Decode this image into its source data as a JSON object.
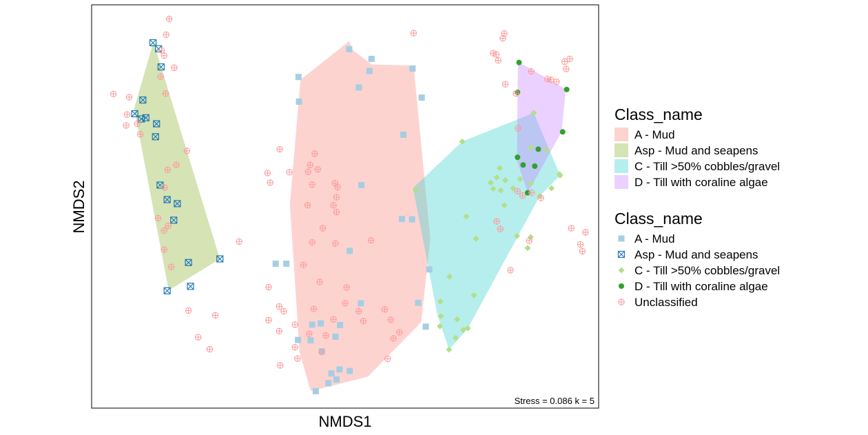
{
  "chart_data": {
    "type": "scatter",
    "xlabel": "NMDS1",
    "ylabel": "NMDS2",
    "xlim": [
      0,
      100
    ],
    "ylim": [
      0,
      100
    ],
    "annotation": "Stress = 0.086 k = 5",
    "grid": false,
    "legend_placement": "right",
    "legends": [
      {
        "title": "Class_name",
        "kind": "fill",
        "entries": [
          {
            "label": "A - Mud",
            "color": "#f8766d",
            "alpha": 0.32
          },
          {
            "label": "Asp - Mud and seapens",
            "color": "#a3c15a",
            "alpha": 0.45
          },
          {
            "label": "C - Till >50% cobbles/gravel",
            "color": "#3fd3d0",
            "alpha": 0.38
          },
          {
            "label": "D - Till with coraline algae",
            "color": "#c77cff",
            "alpha": 0.35
          }
        ]
      },
      {
        "title": "Class_name",
        "kind": "shape",
        "entries": [
          {
            "label": "A - Mud",
            "shape": "square",
            "color": "#a6cee3"
          },
          {
            "label": "Asp - Mud and seapens",
            "shape": "square-x",
            "color": "#1f78b4"
          },
          {
            "label": "C - Till >50% cobbles/gravel",
            "shape": "diamond",
            "color": "#b2df8a"
          },
          {
            "label": "D - Till with coraline algae",
            "shape": "circle",
            "color": "#33a02c"
          },
          {
            "label": "Unclassified",
            "shape": "circle-plus",
            "color": "#fb9a99"
          }
        ]
      }
    ],
    "hulls": [
      {
        "name": "A - Mud",
        "color": "#f8766d",
        "alpha": 0.32,
        "points": [
          [
            51.5,
            88.8
          ],
          [
            55.3,
            85.2
          ],
          [
            63.5,
            84.9
          ],
          [
            66.8,
            42.0
          ],
          [
            65.0,
            21.3
          ],
          [
            54.5,
            7.8
          ],
          [
            43.2,
            4.2
          ],
          [
            41.0,
            13.9
          ],
          [
            39.1,
            50.5
          ],
          [
            41.2,
            81.4
          ],
          [
            50.8,
            91.0
          ]
        ]
      },
      {
        "name": "Asp - Mud and seapens",
        "color": "#a3c15a",
        "alpha": 0.45,
        "points": [
          [
            12.2,
            90.8
          ],
          [
            25.3,
            37.0
          ],
          [
            15.2,
            29.2
          ],
          [
            8.4,
            74.3
          ]
        ]
      },
      {
        "name": "C - Till >50% cobbles/gravel",
        "color": "#3fd3d0",
        "alpha": 0.38,
        "points": [
          [
            87.2,
            73.2
          ],
          [
            92.4,
            57.7
          ],
          [
            88.4,
            52.6
          ],
          [
            74.2,
            19.8
          ],
          [
            70.5,
            14.5
          ],
          [
            68.2,
            23.1
          ],
          [
            63.4,
            54.6
          ],
          [
            73.1,
            66.1
          ]
        ]
      },
      {
        "name": "D - Till with coraline algae",
        "color": "#c77cff",
        "alpha": 0.35,
        "points": [
          [
            84.1,
            85.9
          ],
          [
            93.5,
            79.1
          ],
          [
            92.7,
            68.5
          ],
          [
            86.0,
            53.4
          ],
          [
            83.9,
            61.3
          ],
          [
            84.0,
            78.3
          ]
        ]
      }
    ],
    "series": [
      {
        "name": "A - Mud",
        "shape": "square",
        "color": "#a6cee3",
        "points": [
          [
            50.8,
            89.0
          ],
          [
            55.2,
            86.6
          ],
          [
            54.8,
            83.6
          ],
          [
            63.3,
            84.2
          ],
          [
            40.8,
            82.1
          ],
          [
            52.7,
            79.5
          ],
          [
            65.1,
            77.0
          ],
          [
            40.9,
            76.0
          ],
          [
            61.5,
            67.8
          ],
          [
            53.2,
            55.3
          ],
          [
            63.2,
            46.8
          ],
          [
            61.2,
            46.9
          ],
          [
            50.9,
            39.0
          ],
          [
            36.3,
            35.8
          ],
          [
            38.4,
            35.8
          ],
          [
            66.6,
            34.4
          ],
          [
            53.1,
            26.0
          ],
          [
            64.4,
            26.1
          ],
          [
            43.5,
            20.7
          ],
          [
            45.2,
            21.0
          ],
          [
            49.0,
            20.6
          ],
          [
            40.7,
            16.9
          ],
          [
            43.2,
            16.8
          ],
          [
            48.1,
            17.7
          ],
          [
            45.4,
            14.1
          ],
          [
            48.9,
            9.6
          ],
          [
            47.3,
            8.6
          ],
          [
            48.3,
            7.1
          ],
          [
            50.9,
            9.2
          ],
          [
            46.7,
            6.2
          ],
          [
            44.2,
            4.2
          ],
          [
            65.9,
            20.2
          ]
        ]
      },
      {
        "name": "Asp - Mud and seapens",
        "shape": "square-x",
        "color": "#1f78b4",
        "points": [
          [
            12.1,
            90.6
          ],
          [
            13.2,
            89.1
          ],
          [
            13.7,
            84.6
          ],
          [
            10.1,
            76.4
          ],
          [
            9.8,
            71.7
          ],
          [
            12.8,
            70.5
          ],
          [
            8.5,
            73.0
          ],
          [
            10.7,
            72.0
          ],
          [
            12.6,
            67.3
          ],
          [
            13.5,
            55.3
          ],
          [
            14.9,
            51.7
          ],
          [
            16.9,
            50.7
          ],
          [
            16.2,
            46.6
          ],
          [
            19.1,
            36.1
          ],
          [
            25.3,
            37.0
          ],
          [
            19.5,
            30.2
          ],
          [
            14.9,
            29.1
          ]
        ]
      },
      {
        "name": "C - Till >50% cobbles/gravel",
        "shape": "diamond",
        "color": "#b2df8a",
        "points": [
          [
            87.2,
            73.2
          ],
          [
            73.1,
            66.1
          ],
          [
            86.6,
            64.6
          ],
          [
            89.8,
            64.0
          ],
          [
            80.5,
            59.5
          ],
          [
            78.7,
            55.9
          ],
          [
            79.9,
            57.2
          ],
          [
            81.6,
            56.5
          ],
          [
            84.5,
            56.8
          ],
          [
            86.7,
            55.8
          ],
          [
            79.2,
            54.4
          ],
          [
            80.7,
            54.0
          ],
          [
            83.1,
            54.5
          ],
          [
            90.7,
            54.5
          ],
          [
            92.3,
            58.0
          ],
          [
            92.4,
            57.7
          ],
          [
            81.4,
            50.3
          ],
          [
            63.9,
            54.0
          ],
          [
            73.9,
            47.5
          ],
          [
            86.6,
            42.4
          ],
          [
            83.9,
            42.7
          ],
          [
            75.8,
            42.0
          ],
          [
            88.4,
            52.6
          ],
          [
            70.6,
            32.6
          ],
          [
            68.8,
            26.4
          ],
          [
            75.4,
            28.0
          ],
          [
            72.1,
            22.0
          ],
          [
            73.3,
            19.4
          ],
          [
            71.8,
            17.4
          ],
          [
            70.5,
            14.5
          ],
          [
            74.2,
            19.8
          ],
          [
            68.7,
            20.3
          ],
          [
            68.9,
            22.8
          ],
          [
            86.0,
            39.7
          ]
        ]
      },
      {
        "name": "D - Till with coraline algae",
        "shape": "circle",
        "color": "#33a02c",
        "points": [
          [
            84.3,
            85.7
          ],
          [
            93.7,
            79.0
          ],
          [
            84.0,
            78.3
          ],
          [
            92.9,
            68.5
          ],
          [
            88.1,
            64.2
          ],
          [
            85.1,
            60.3
          ],
          [
            84.0,
            62.2
          ],
          [
            87.4,
            60.0
          ],
          [
            86.0,
            53.4
          ]
        ]
      },
      {
        "name": "Unclassified",
        "shape": "circle-plus",
        "color": "#fb9a99",
        "points": [
          [
            15.3,
            96.5
          ],
          [
            14.7,
            92.6
          ],
          [
            13.8,
            88.7
          ],
          [
            14.3,
            87.4
          ],
          [
            16.3,
            84.4
          ],
          [
            13.6,
            82.2
          ],
          [
            14.6,
            78.0
          ],
          [
            4.3,
            77.9
          ],
          [
            7.4,
            77.1
          ],
          [
            7.0,
            72.8
          ],
          [
            6.8,
            70.1
          ],
          [
            9.0,
            70.5
          ],
          [
            9.6,
            67.9
          ],
          [
            18.8,
            63.8
          ],
          [
            16.7,
            60.3
          ],
          [
            15.0,
            59.1
          ],
          [
            14.4,
            54.7
          ],
          [
            13.1,
            47.1
          ],
          [
            15.1,
            45.2
          ],
          [
            14.3,
            44.0
          ],
          [
            14.3,
            39.3
          ],
          [
            15.7,
            35.0
          ],
          [
            19.1,
            24.2
          ],
          [
            21.0,
            17.6
          ],
          [
            23.3,
            14.6
          ],
          [
            34.9,
            30.0
          ],
          [
            37.0,
            25.2
          ],
          [
            37.9,
            24.0
          ],
          [
            40.1,
            20.7
          ],
          [
            37.0,
            19.1
          ],
          [
            34.9,
            21.8
          ],
          [
            42.9,
            18.4
          ],
          [
            43.8,
            24.6
          ],
          [
            46.2,
            18.0
          ],
          [
            47.7,
            22.0
          ],
          [
            50.0,
            26.0
          ],
          [
            52.7,
            24.0
          ],
          [
            53.6,
            21.6
          ],
          [
            57.8,
            24.5
          ],
          [
            59.0,
            21.9
          ],
          [
            59.5,
            17.3
          ],
          [
            58.4,
            12.2
          ],
          [
            60.7,
            18.8
          ],
          [
            50.3,
            29.9
          ],
          [
            45.0,
            31.3
          ],
          [
            41.8,
            35.5
          ],
          [
            43.5,
            41.1
          ],
          [
            45.6,
            44.6
          ],
          [
            48.3,
            48.6
          ],
          [
            47.7,
            50.3
          ],
          [
            42.6,
            50.3
          ],
          [
            43.5,
            55.4
          ],
          [
            48.3,
            52.3
          ],
          [
            48.5,
            54.8
          ],
          [
            39.0,
            58.5
          ],
          [
            34.7,
            58.3
          ],
          [
            42.7,
            58.6
          ],
          [
            43.1,
            60.3
          ],
          [
            44.6,
            59.2
          ],
          [
            44.0,
            63.1
          ],
          [
            37.1,
            64.2
          ],
          [
            35.2,
            55.9
          ],
          [
            48.0,
            55.8
          ],
          [
            55.1,
            41.6
          ],
          [
            48.1,
            40.8
          ],
          [
            40.1,
            15.1
          ],
          [
            45.4,
            13.9
          ],
          [
            40.6,
            12.3
          ],
          [
            37.2,
            10.6
          ],
          [
            29.1,
            41.3
          ],
          [
            24.4,
            23.0
          ],
          [
            63.5,
            93.0
          ],
          [
            81.4,
            92.9
          ],
          [
            81.1,
            91.7
          ],
          [
            79.2,
            88.0
          ],
          [
            80.2,
            86.2
          ],
          [
            79.8,
            87.7
          ],
          [
            86.7,
            83.5
          ],
          [
            93.3,
            85.9
          ],
          [
            93.6,
            84.1
          ],
          [
            94.3,
            86.6
          ],
          [
            89.9,
            81.6
          ],
          [
            91.7,
            80.9
          ],
          [
            90.6,
            81.4
          ],
          [
            81.6,
            80.3
          ],
          [
            84.1,
            69.4
          ],
          [
            83.7,
            78.0
          ],
          [
            96.4,
            40.6
          ],
          [
            94.6,
            44.6
          ],
          [
            97.4,
            43.6
          ],
          [
            96.8,
            38.9
          ],
          [
            84.0,
            53.8
          ],
          [
            85.0,
            52.7
          ],
          [
            86.8,
            53.4
          ],
          [
            88.6,
            52.1
          ],
          [
            86.3,
            41.5
          ],
          [
            82.6,
            34.2
          ],
          [
            79.9,
            46.3
          ],
          [
            80.6,
            44.4
          ]
        ]
      }
    ]
  }
}
